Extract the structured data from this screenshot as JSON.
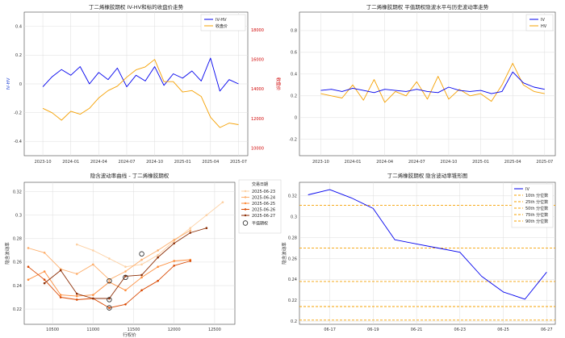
{
  "chart_data": [
    {
      "type": "line",
      "title": "丁二烯橡胶期权 IV-HV和标的收盘价走势",
      "xlabel": "",
      "ylabel": "IV-HV",
      "ylabel_right": "收盘价",
      "x_ticks": [
        "2023-10",
        "2024-01",
        "2024-04",
        "2024-07",
        "2024-10",
        "2025-01",
        "2025-04",
        "2025-07"
      ],
      "x_range": [
        "2023-08",
        "2025-08"
      ],
      "ylim": [
        -0.5,
        0.5
      ],
      "y_ticks": [
        -0.4,
        -0.2,
        0.0,
        0.2,
        0.4
      ],
      "y2lim": [
        9500,
        19200
      ],
      "y2_ticks": [
        10000,
        12000,
        14000,
        16000,
        18000
      ],
      "series": [
        {
          "name": "IV-HV",
          "color": "#0000ee",
          "axis": "left",
          "x": [
            "2023-10",
            "2023-11",
            "2023-12",
            "2024-01",
            "2024-02",
            "2024-03",
            "2024-04",
            "2024-05",
            "2024-06",
            "2024-07",
            "2024-08",
            "2024-09",
            "2024-10",
            "2024-11",
            "2024-12",
            "2025-01",
            "2025-02",
            "2025-03",
            "2025-04",
            "2025-05",
            "2025-06",
            "2025-07"
          ],
          "values": [
            -0.02,
            0.05,
            0.1,
            0.06,
            0.12,
            0.0,
            0.08,
            0.03,
            0.11,
            -0.02,
            0.06,
            0.02,
            0.12,
            -0.01,
            0.07,
            0.04,
            0.09,
            0.02,
            0.18,
            -0.05,
            0.03,
            0.0
          ]
        },
        {
          "name": "收盘价",
          "color": "#f5a000",
          "axis": "right",
          "x": [
            "2023-10",
            "2023-11",
            "2023-12",
            "2024-01",
            "2024-02",
            "2024-03",
            "2024-04",
            "2024-05",
            "2024-06",
            "2024-07",
            "2024-08",
            "2024-09",
            "2024-10",
            "2024-11",
            "2024-12",
            "2025-01",
            "2025-02",
            "2025-03",
            "2025-04",
            "2025-05",
            "2025-06",
            "2025-07"
          ],
          "values": [
            12700,
            12400,
            11900,
            12500,
            12300,
            12700,
            13400,
            13900,
            14200,
            14800,
            15300,
            15500,
            16000,
            14500,
            14500,
            13800,
            13900,
            13500,
            12100,
            11400,
            11700,
            11600
          ]
        }
      ],
      "legend": "top-right",
      "grid": true
    },
    {
      "type": "line",
      "title": "丁二烯橡胶期权 平值期权隐波水平与历史波动率走势",
      "xlabel": "",
      "ylabel": "",
      "x_ticks": [
        "2023-10",
        "2024-01",
        "2024-04",
        "2024-07",
        "2024-10",
        "2025-01",
        "2025-04",
        "2025-07"
      ],
      "x_range": [
        "2023-08",
        "2025-08"
      ],
      "ylim": [
        -0.35,
        0.97
      ],
      "y_ticks": [
        -0.2,
        0.0,
        0.2,
        0.4,
        0.6,
        0.8
      ],
      "series": [
        {
          "name": "IV",
          "color": "#0000ee",
          "x": [
            "2023-10",
            "2023-11",
            "2023-12",
            "2024-01",
            "2024-02",
            "2024-03",
            "2024-04",
            "2024-05",
            "2024-06",
            "2024-07",
            "2024-08",
            "2024-09",
            "2024-10",
            "2024-11",
            "2024-12",
            "2025-01",
            "2025-02",
            "2025-03",
            "2025-04",
            "2025-05",
            "2025-06",
            "2025-07"
          ],
          "values": [
            0.25,
            0.26,
            0.24,
            0.27,
            0.25,
            0.23,
            0.26,
            0.25,
            0.24,
            0.26,
            0.24,
            0.23,
            0.28,
            0.25,
            0.24,
            0.25,
            0.22,
            0.24,
            0.42,
            0.32,
            0.28,
            0.26
          ]
        },
        {
          "name": "HV",
          "color": "#f5a000",
          "x": [
            "2023-10",
            "2023-11",
            "2023-12",
            "2024-01",
            "2024-02",
            "2024-03",
            "2024-04",
            "2024-05",
            "2024-06",
            "2024-07",
            "2024-08",
            "2024-09",
            "2024-10",
            "2024-11",
            "2024-12",
            "2025-01",
            "2025-02",
            "2025-03",
            "2025-04",
            "2025-05",
            "2025-06",
            "2025-07"
          ],
          "values": [
            0.22,
            0.2,
            0.18,
            0.3,
            0.16,
            0.35,
            0.14,
            0.24,
            0.2,
            0.33,
            0.17,
            0.38,
            0.17,
            0.26,
            0.2,
            0.22,
            0.15,
            0.3,
            0.5,
            0.3,
            0.24,
            0.22
          ]
        }
      ],
      "legend": "top-right",
      "grid": true
    },
    {
      "type": "line",
      "title": "隐含波动率曲线 - 丁二烯橡胶期权",
      "xlabel": "行权价",
      "ylabel": "隐含波动率",
      "x_ticks": [
        10500,
        11000,
        11500,
        12000,
        12500
      ],
      "xlim": [
        10150,
        12750
      ],
      "ylim": [
        0.207,
        0.328
      ],
      "y_ticks": [
        0.22,
        0.24,
        0.26,
        0.28,
        0.3,
        0.32
      ],
      "legend_title": "交易日期",
      "legend": "top-right",
      "atm_label": "平值期权",
      "grid": true,
      "series": [
        {
          "name": "2025-06-23",
          "color": "#fdd0a2",
          "x": [
            10800,
            11000,
            11200,
            11400,
            11600,
            11800,
            12000,
            12200,
            12400,
            12600
          ],
          "values": [
            0.275,
            0.27,
            0.263,
            0.256,
            0.258,
            0.266,
            0.278,
            0.289,
            0.3,
            0.311
          ]
        },
        {
          "name": "2025-06-24",
          "color": "#fdae6b",
          "x": [
            10200,
            10400,
            10600,
            10800,
            11000,
            11200,
            11400,
            11600,
            11800,
            12000,
            12200
          ],
          "values": [
            0.272,
            0.268,
            0.254,
            0.25,
            0.258,
            0.245,
            0.252,
            0.262,
            0.27,
            0.279,
            0.287
          ]
        },
        {
          "name": "2025-06-25",
          "color": "#fd8d3c",
          "x": [
            10200,
            10400,
            10600,
            10800,
            11000,
            11200,
            11400,
            11600,
            11800,
            12000,
            12200
          ],
          "values": [
            0.245,
            0.252,
            0.232,
            0.231,
            0.232,
            0.243,
            0.236,
            0.247,
            0.256,
            0.261,
            0.262
          ]
        },
        {
          "name": "2025-06-26",
          "color": "#d94801",
          "x": [
            10200,
            10400,
            10600,
            10800,
            11000,
            11200,
            11400,
            11600,
            11800,
            12000,
            12200
          ],
          "values": [
            0.256,
            0.245,
            0.23,
            0.228,
            0.229,
            0.221,
            0.224,
            0.236,
            0.244,
            0.257,
            0.261
          ]
        },
        {
          "name": "2025-06-27",
          "color": "#8c2d04",
          "x": [
            10400,
            10600,
            10800,
            11000,
            11200,
            11400,
            11600,
            11800,
            12000,
            12200,
            12400
          ],
          "values": [
            0.242,
            0.253,
            0.233,
            0.229,
            0.229,
            0.248,
            0.249,
            0.264,
            0.276,
            0.285,
            0.289
          ]
        }
      ],
      "atm_points": [
        {
          "x": 11200,
          "y": 0.244
        },
        {
          "x": 11200,
          "y": 0.228
        },
        {
          "x": 11200,
          "y": 0.221
        },
        {
          "x": 11400,
          "y": 0.247
        },
        {
          "x": 11600,
          "y": 0.267
        }
      ]
    },
    {
      "type": "line",
      "title": "丁二烯橡胶期权 隐含波动率锥形图",
      "xlabel": "",
      "ylabel": "隐含波动率",
      "x_ticks": [
        "06-17",
        "06-19",
        "06-21",
        "06-23",
        "06-25",
        "06-27"
      ],
      "ylim": [
        0.197,
        0.333
      ],
      "y_ticks": [
        0.2,
        0.22,
        0.24,
        0.26,
        0.28,
        0.3,
        0.32
      ],
      "legend": "top-right",
      "grid": true,
      "series": [
        {
          "name": "IV",
          "color": "#0000ee",
          "x": [
            "06-16",
            "06-17",
            "06-18",
            "06-19",
            "06-20",
            "06-21",
            "06-22",
            "06-23",
            "06-24",
            "06-25",
            "06-26",
            "06-27"
          ],
          "values": [
            0.321,
            0.326,
            0.318,
            0.308,
            0.278,
            0.274,
            0.27,
            0.266,
            0.243,
            0.228,
            0.221,
            0.247
          ]
        }
      ],
      "quantiles": [
        {
          "name": "10th 分位数",
          "value": 0.201
        },
        {
          "name": "25th 分位数",
          "value": 0.214
        },
        {
          "name": "50th 分位数",
          "value": 0.238
        },
        {
          "name": "75th 分位数",
          "value": 0.27
        },
        {
          "name": "90th 分位数",
          "value": 0.311
        }
      ],
      "quantile_color": "#f5a000"
    }
  ]
}
